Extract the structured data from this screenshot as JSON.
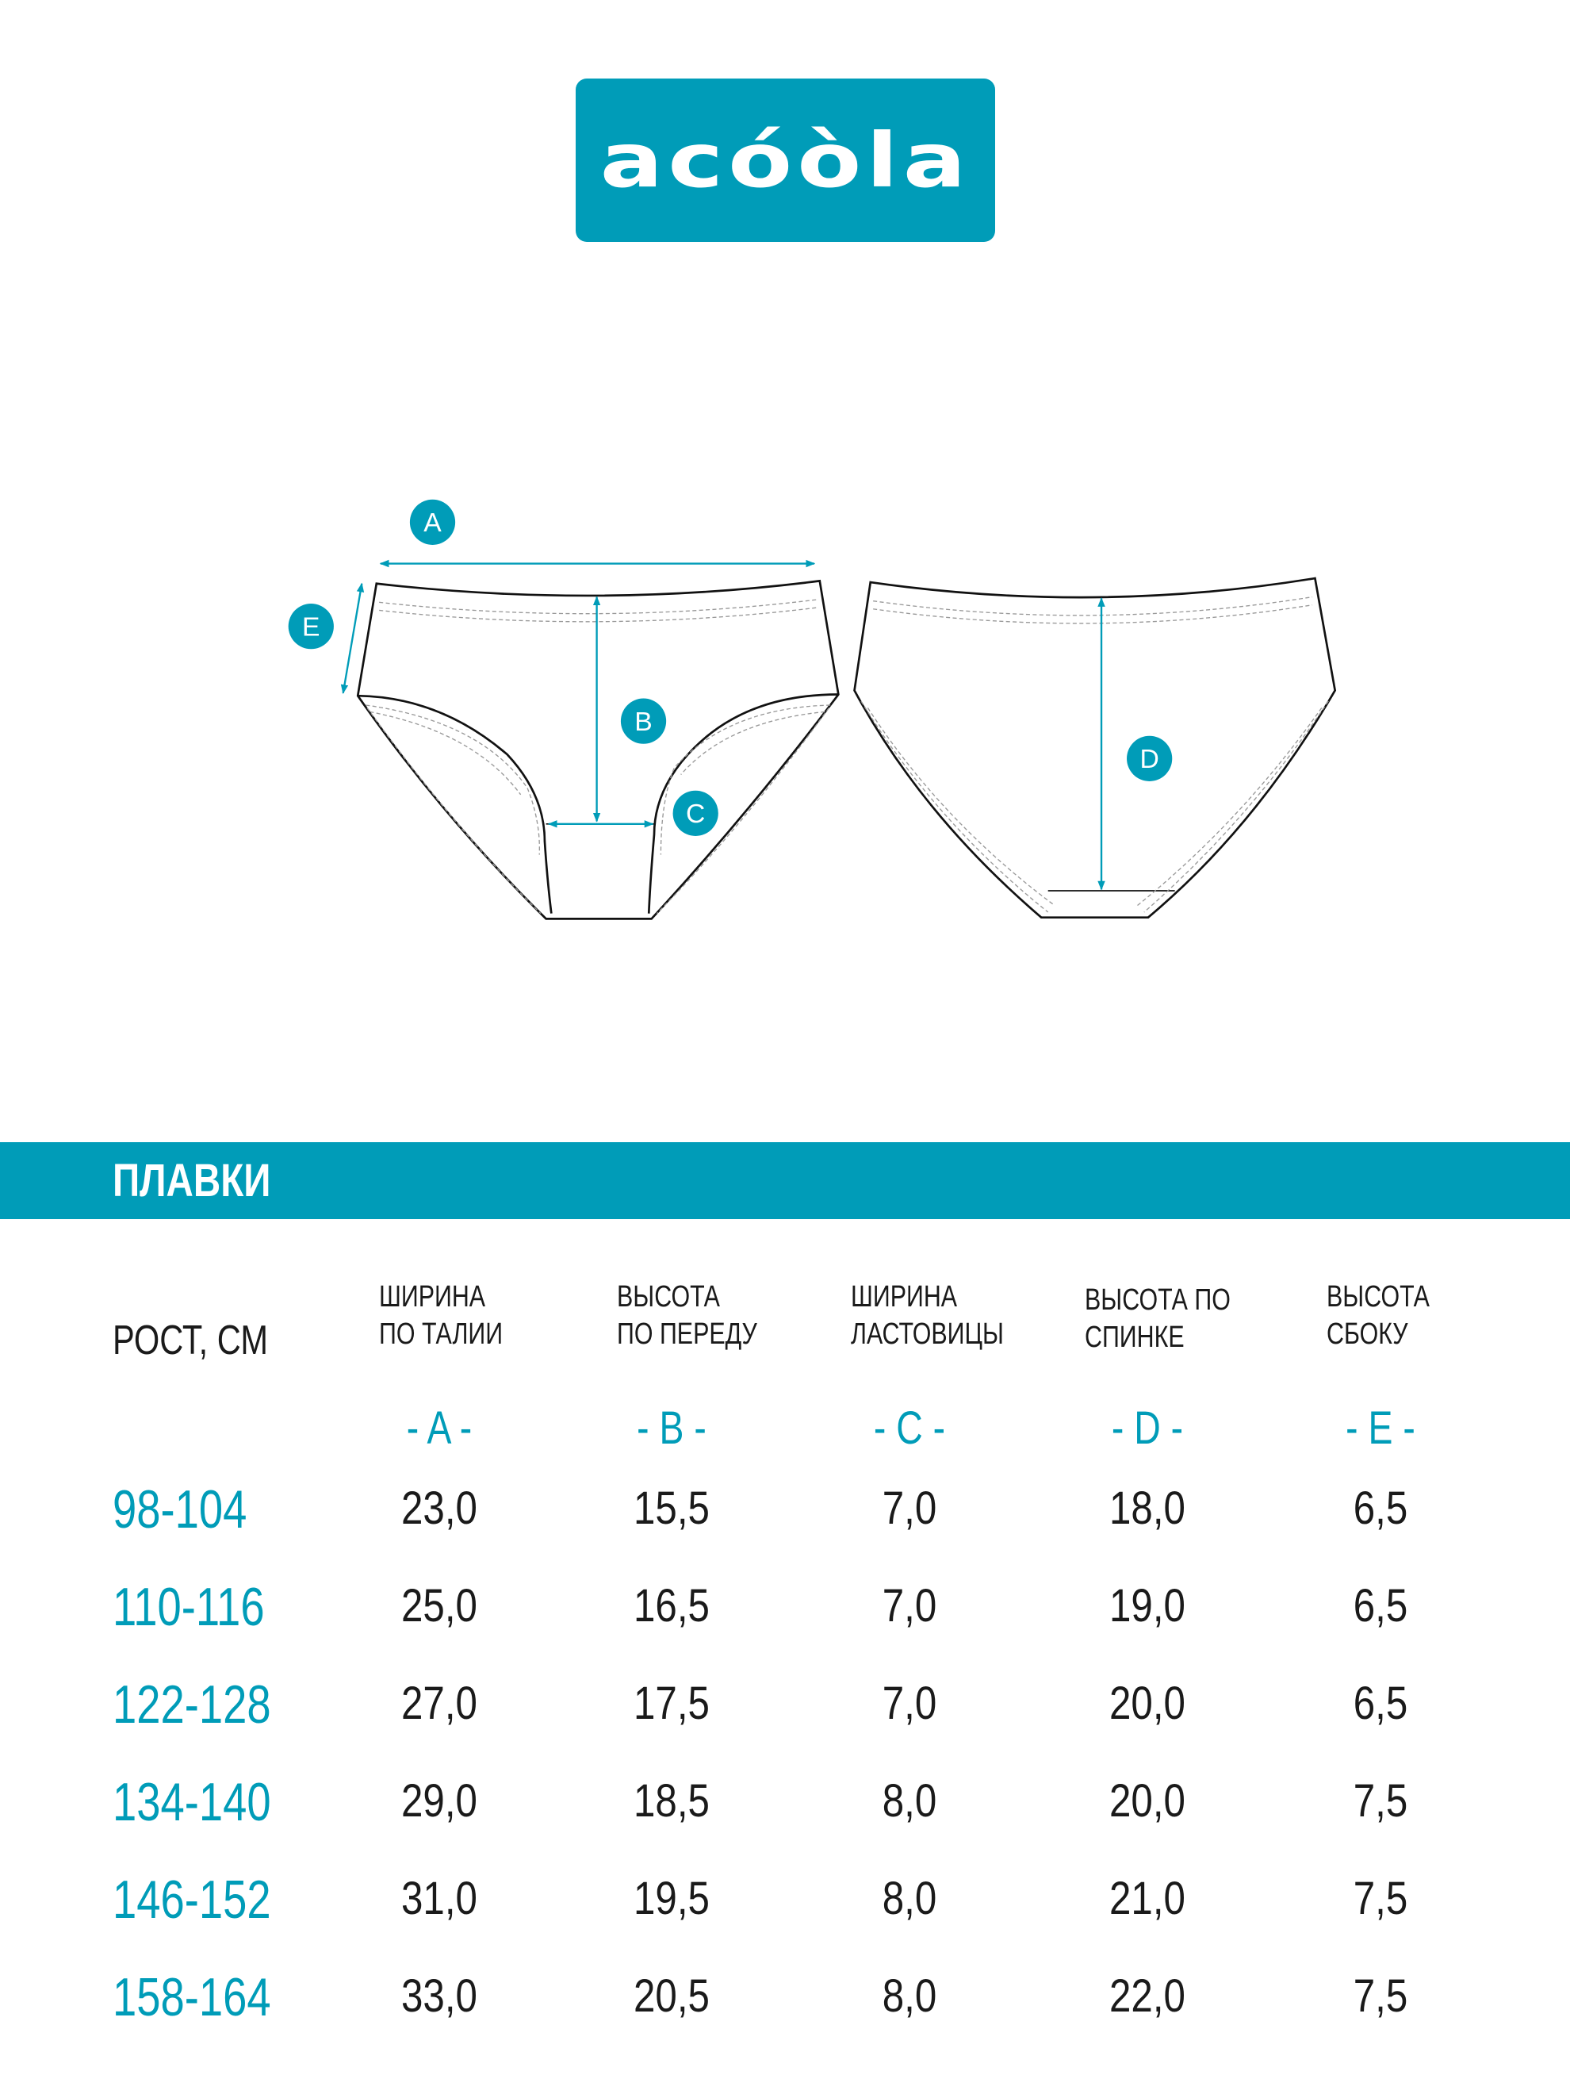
{
  "logo": {
    "text": "acóòla",
    "color": "#009cb8"
  },
  "diagram": {
    "labels": [
      "A",
      "B",
      "C",
      "D",
      "E"
    ]
  },
  "section": {
    "title": "ПЛАВКИ",
    "accent": "#009cb8"
  },
  "table": {
    "row_header": "РОСТ, СМ",
    "columns": [
      {
        "line1": "ШИРИНА",
        "line2": "ПО ТАЛИИ",
        "letter": "- A -"
      },
      {
        "line1": "ВЫСОТА",
        "line2": "ПО ПЕРЕДУ",
        "letter": "- B -"
      },
      {
        "line1": "ШИРИНА",
        "line2": "ЛАСТОВИЦЫ",
        "letter": "- C -"
      },
      {
        "line1": "ВЫСОТА ПО",
        "line2": "СПИНКЕ",
        "letter": "- D -"
      },
      {
        "line1": "ВЫСОТА",
        "line2": "СБОКУ",
        "letter": "- E -"
      }
    ],
    "rows": [
      {
        "size": "98-104",
        "values": [
          "23,0",
          "15,5",
          "7,0",
          "18,0",
          "6,5"
        ]
      },
      {
        "size": "110-116",
        "values": [
          "25,0",
          "16,5",
          "7,0",
          "19,0",
          "6,5"
        ]
      },
      {
        "size": "122-128",
        "values": [
          "27,0",
          "17,5",
          "7,0",
          "20,0",
          "6,5"
        ]
      },
      {
        "size": "134-140",
        "values": [
          "29,0",
          "18,5",
          "8,0",
          "20,0",
          "7,5"
        ]
      },
      {
        "size": "146-152",
        "values": [
          "31,0",
          "19,5",
          "8,0",
          "21,0",
          "7,5"
        ]
      },
      {
        "size": "158-164",
        "values": [
          "33,0",
          "20,5",
          "8,0",
          "22,0",
          "7,5"
        ]
      }
    ]
  }
}
